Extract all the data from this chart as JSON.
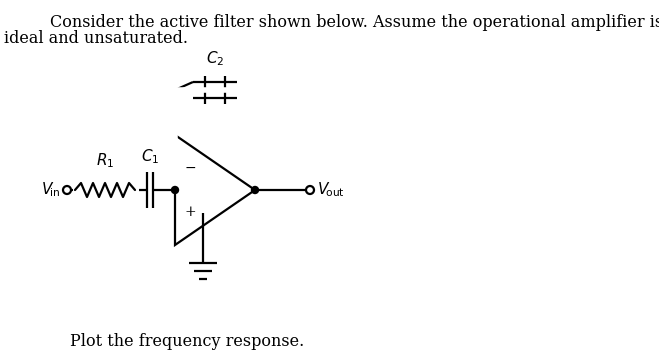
{
  "title_line1": "Consider the active filter shown below. Assume the operational amplifier is",
  "title_line2": "ideal and unsaturated.",
  "bottom_text": "Plot the frequency response.",
  "bg_color": "#ffffff",
  "line_color": "#000000",
  "font_size_title": 11.5,
  "font_size_labels": 11,
  "fig_width": 6.59,
  "fig_height": 3.64,
  "dpi": 100,
  "vin_label": "$V_{\\!\\mathrm{in}}$",
  "vout_label": "$V_{\\!\\mathrm{out}}$",
  "R1_label": "$R_1$",
  "C1_label": "$C_1$",
  "C2_label": "$C_2$",
  "minus_label": "−",
  "plus_label": "+"
}
